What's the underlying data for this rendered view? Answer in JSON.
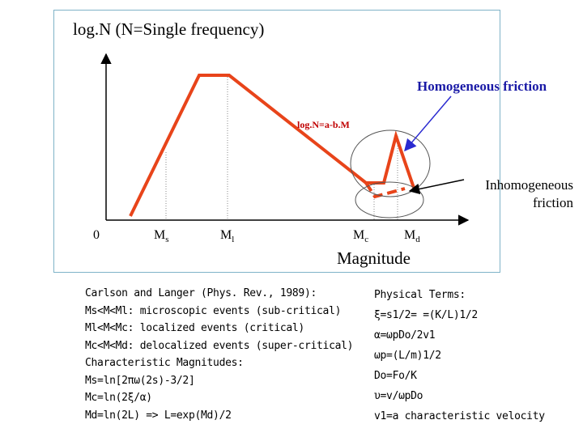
{
  "title": "log.N  (N=Single frequency)",
  "homogeneous_label": "Homogeneous friction",
  "inhomogeneous_label": "Inhomogeneous friction",
  "equation_label": "log.N=a-b.M",
  "x_axis_title": "Magnitude",
  "ticks": {
    "zero": "0",
    "ms": "Ms",
    "ml": "Ml",
    "mc": "Mc",
    "md": "Md"
  },
  "left_notes": [
    "Carlson and Langer (Phys. Rev., 1989):",
    "Ms<M<Ml: microscopic events (sub-critical)",
    "Ml<M<Mc: localized events (critical)",
    "Mc<M<Md: delocalized events (super-critical)",
    "Characteristic Magnitudes:",
    "Ms=ln[2πω(2s)-3/2]",
    "Mc=ln(2ξ/α)",
    "Md=ln(2L) => L=exp(Md)/2"
  ],
  "right_notes": [
    "Physical Terms:",
    "ξ=s1/2= =(K/L)1/2",
    "α=ωpDo/2v1",
    "ωp=(L/m)1/2",
    "Do=Fo/K",
    "υ=v/ωpDo",
    "v1=a characteristic velocity"
  ],
  "colors": {
    "curve": "#e8441a",
    "arrow": "#2a2ad0",
    "frame": "#7fb3c8",
    "equation": "#c00000"
  }
}
